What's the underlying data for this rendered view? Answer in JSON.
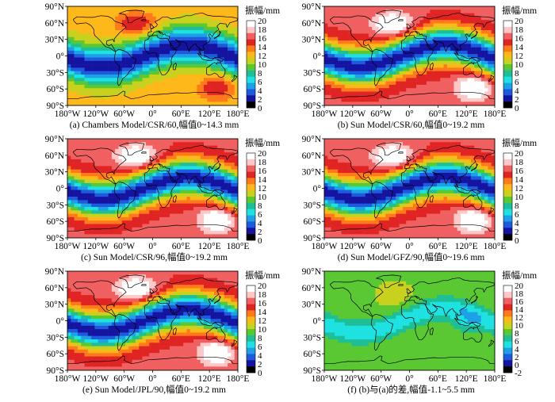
{
  "figure": {
    "lat_labels": [
      "90°N",
      "60°N",
      "30°N",
      "0°",
      "30°S",
      "60°S",
      "90°S"
    ],
    "lon_labels": [
      "180°W",
      "120°W",
      "60°W",
      "0°",
      "60°E",
      "120°E",
      "180°E"
    ],
    "colorbar_title": "振幅/mm",
    "colorbar_ticks_main": [
      "20",
      "18",
      "16",
      "14",
      "12",
      "10",
      "8",
      "6",
      "4",
      "2",
      "0"
    ],
    "colorbar_ticks_diff": [
      "20",
      "18",
      "16",
      "14",
      "12",
      "10",
      "8",
      "6",
      "4",
      "2",
      "0",
      "-2"
    ],
    "colorbar_colors": [
      "#ffffff",
      "#ffc8c8",
      "#f06060",
      "#e02424",
      "#ff7a1a",
      "#ffb81a",
      "#c8d21e",
      "#5ac832",
      "#1ebe96",
      "#1ee1e1",
      "#1ea0e6",
      "#1e5ade",
      "#1414a0",
      "#000000"
    ],
    "panels": [
      {
        "id": "a",
        "caption": "(a) Chambers Model/CSR/60,幅值0~14.3 mm",
        "type": "main",
        "max": 14.3,
        "min": 0
      },
      {
        "id": "b",
        "caption": "(b) Sun Model/CSR/60,幅值0~19.2 mm",
        "type": "main",
        "max": 19.2,
        "min": 0
      },
      {
        "id": "c",
        "caption": "(c) Sun Model/CSR/96,幅值0~19.2 mm",
        "type": "main",
        "max": 19.2,
        "min": 0
      },
      {
        "id": "d",
        "caption": "(d) Sun Model/GFZ/90,幅值0~19.6 mm",
        "type": "main",
        "max": 19.6,
        "min": 0
      },
      {
        "id": "e",
        "caption": "(e) Sun Model/JPL/90,幅值0~19.2 mm",
        "type": "main",
        "max": 19.2,
        "min": 0
      },
      {
        "id": "f",
        "caption": "(f) (b)与(a)的差,幅值-1.1~5.5 mm",
        "type": "diff",
        "max": 5.5,
        "min": -1.1
      }
    ]
  }
}
